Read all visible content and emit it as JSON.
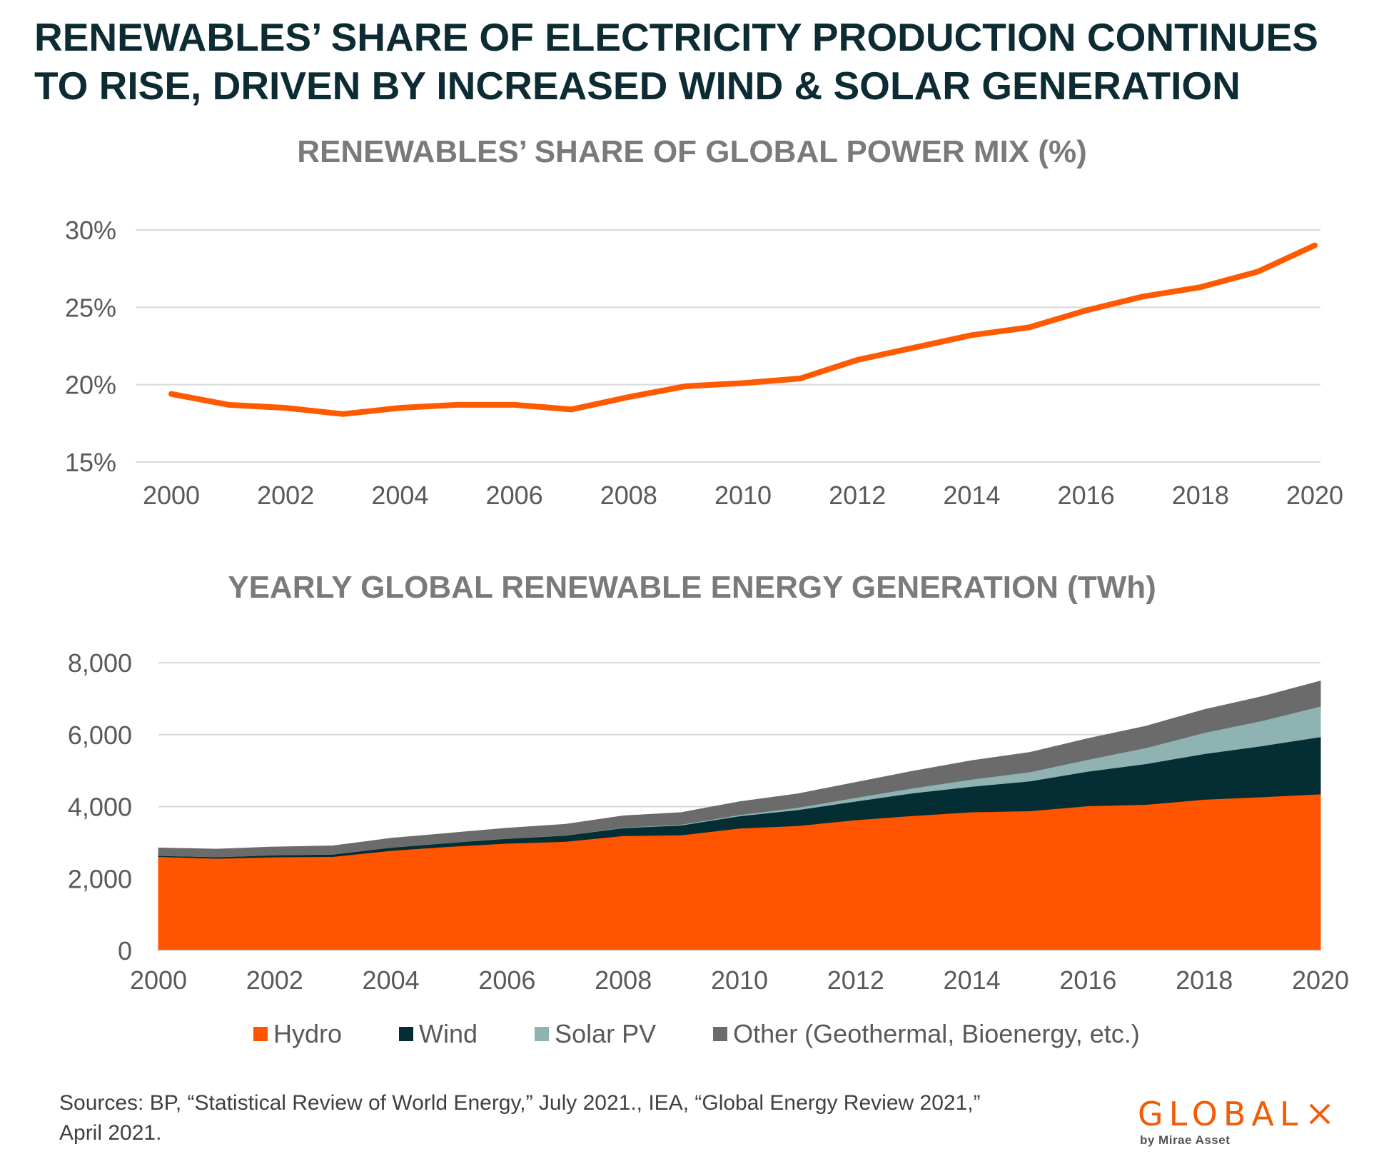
{
  "headline": "RENEWABLES’ SHARE OF ELECTRICITY PRODUCTION CONTINUES TO RISE, DRIVEN BY INCREASED WIND & SOLAR GENERATION",
  "sources": "Sources: BP, “Statistical Review of World Energy,” July 2021., IEA, “Global Energy Review 2021,” April 2021.",
  "logo": {
    "text": "GLOBAL",
    "subtext": "by Mirae Asset",
    "brand_color": "#f25c05"
  },
  "chart_data": [
    {
      "type": "line",
      "title": "RENEWABLES’ SHARE OF GLOBAL POWER MIX (%)",
      "xlabel": "",
      "ylabel": "",
      "x": [
        2000,
        2001,
        2002,
        2003,
        2004,
        2005,
        2006,
        2007,
        2008,
        2009,
        2010,
        2011,
        2012,
        2013,
        2014,
        2015,
        2016,
        2017,
        2018,
        2019,
        2020
      ],
      "x_ticks": [
        "2000",
        "2002",
        "2004",
        "2006",
        "2008",
        "2010",
        "2012",
        "2014",
        "2016",
        "2018",
        "2020"
      ],
      "y_ticks": [
        "15%",
        "20%",
        "25%",
        "30%"
      ],
      "ylim": [
        15,
        30
      ],
      "grid": true,
      "series": [
        {
          "color": "#ff5a00",
          "values": [
            19.4,
            18.7,
            18.5,
            18.1,
            18.5,
            18.7,
            18.7,
            18.4,
            19.2,
            19.9,
            20.1,
            20.4,
            21.6,
            22.4,
            23.2,
            23.7,
            24.8,
            25.7,
            26.3,
            27.3,
            29.0
          ]
        }
      ]
    },
    {
      "type": "area",
      "stacked": true,
      "title": "YEARLY GLOBAL RENEWABLE ENERGY GENERATION (TWh)",
      "xlabel": "",
      "ylabel": "",
      "x": [
        2000,
        2001,
        2002,
        2003,
        2004,
        2005,
        2006,
        2007,
        2008,
        2009,
        2010,
        2011,
        2012,
        2013,
        2014,
        2015,
        2016,
        2017,
        2018,
        2019,
        2020
      ],
      "x_ticks": [
        "2000",
        "2002",
        "2004",
        "2006",
        "2008",
        "2010",
        "2012",
        "2014",
        "2016",
        "2018",
        "2020"
      ],
      "y_ticks": [
        "0",
        "2,000",
        "4,000",
        "6,000",
        "8,000"
      ],
      "ylim": [
        0,
        8000
      ],
      "grid": true,
      "legend_position": "bottom",
      "series": [
        {
          "name": "Hydro",
          "color": "#ff5400",
          "values": [
            2610,
            2560,
            2600,
            2610,
            2780,
            2890,
            2980,
            3030,
            3190,
            3210,
            3400,
            3470,
            3630,
            3750,
            3850,
            3880,
            4020,
            4060,
            4200,
            4270,
            4350
          ]
        },
        {
          "name": "Wind",
          "color": "#042e33",
          "values": [
            30,
            40,
            55,
            65,
            85,
            105,
            135,
            170,
            220,
            275,
            340,
            440,
            520,
            630,
            710,
            830,
            960,
            1130,
            1270,
            1420,
            1590
          ]
        },
        {
          "name": "Solar PV",
          "color": "#8fb3b2",
          "values": [
            1,
            2,
            2,
            3,
            3,
            4,
            5,
            7,
            12,
            20,
            33,
            63,
            100,
            139,
            198,
            256,
            330,
            447,
            586,
            700,
            850
          ]
        },
        {
          "name": "Other (Geothermal, Bioenergy, etc.)",
          "color": "#6b6b6b",
          "values": [
            210,
            215,
            220,
            230,
            250,
            260,
            280,
            300,
            320,
            330,
            360,
            380,
            420,
            470,
            520,
            540,
            580,
            600,
            640,
            670,
            700
          ]
        }
      ]
    }
  ]
}
